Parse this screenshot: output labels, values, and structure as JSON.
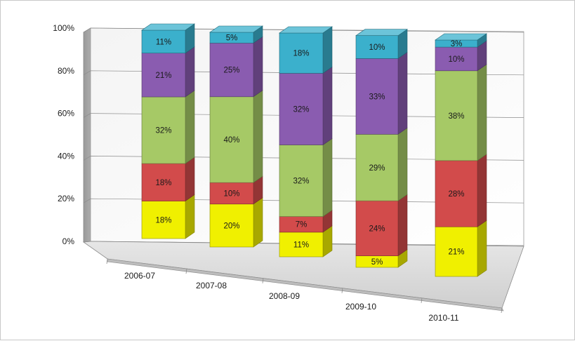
{
  "chart_data": {
    "type": "bar",
    "stacked": true,
    "three_d": true,
    "title": "",
    "xlabel": "",
    "ylabel": "",
    "ylim": [
      0,
      100
    ],
    "y_ticks": [
      "0%",
      "20%",
      "40%",
      "60%",
      "80%",
      "100%"
    ],
    "grid": true,
    "legend": "none",
    "categories": [
      "2006-07",
      "2007-08",
      "2008-09",
      "2009-10",
      "2010-11"
    ],
    "series": [
      {
        "color": "#f0f000",
        "values": [
          18,
          20,
          11,
          5,
          21
        ]
      },
      {
        "color": "#d24b4b",
        "values": [
          18,
          10,
          7,
          24,
          28
        ]
      },
      {
        "color": "#a6c966",
        "values": [
          32,
          40,
          32,
          29,
          38
        ]
      },
      {
        "color": "#8a5cb0",
        "values": [
          21,
          25,
          32,
          33,
          10
        ]
      },
      {
        "color": "#3bb0cc",
        "values": [
          11,
          5,
          18,
          10,
          3
        ]
      }
    ],
    "value_suffix": "%"
  }
}
